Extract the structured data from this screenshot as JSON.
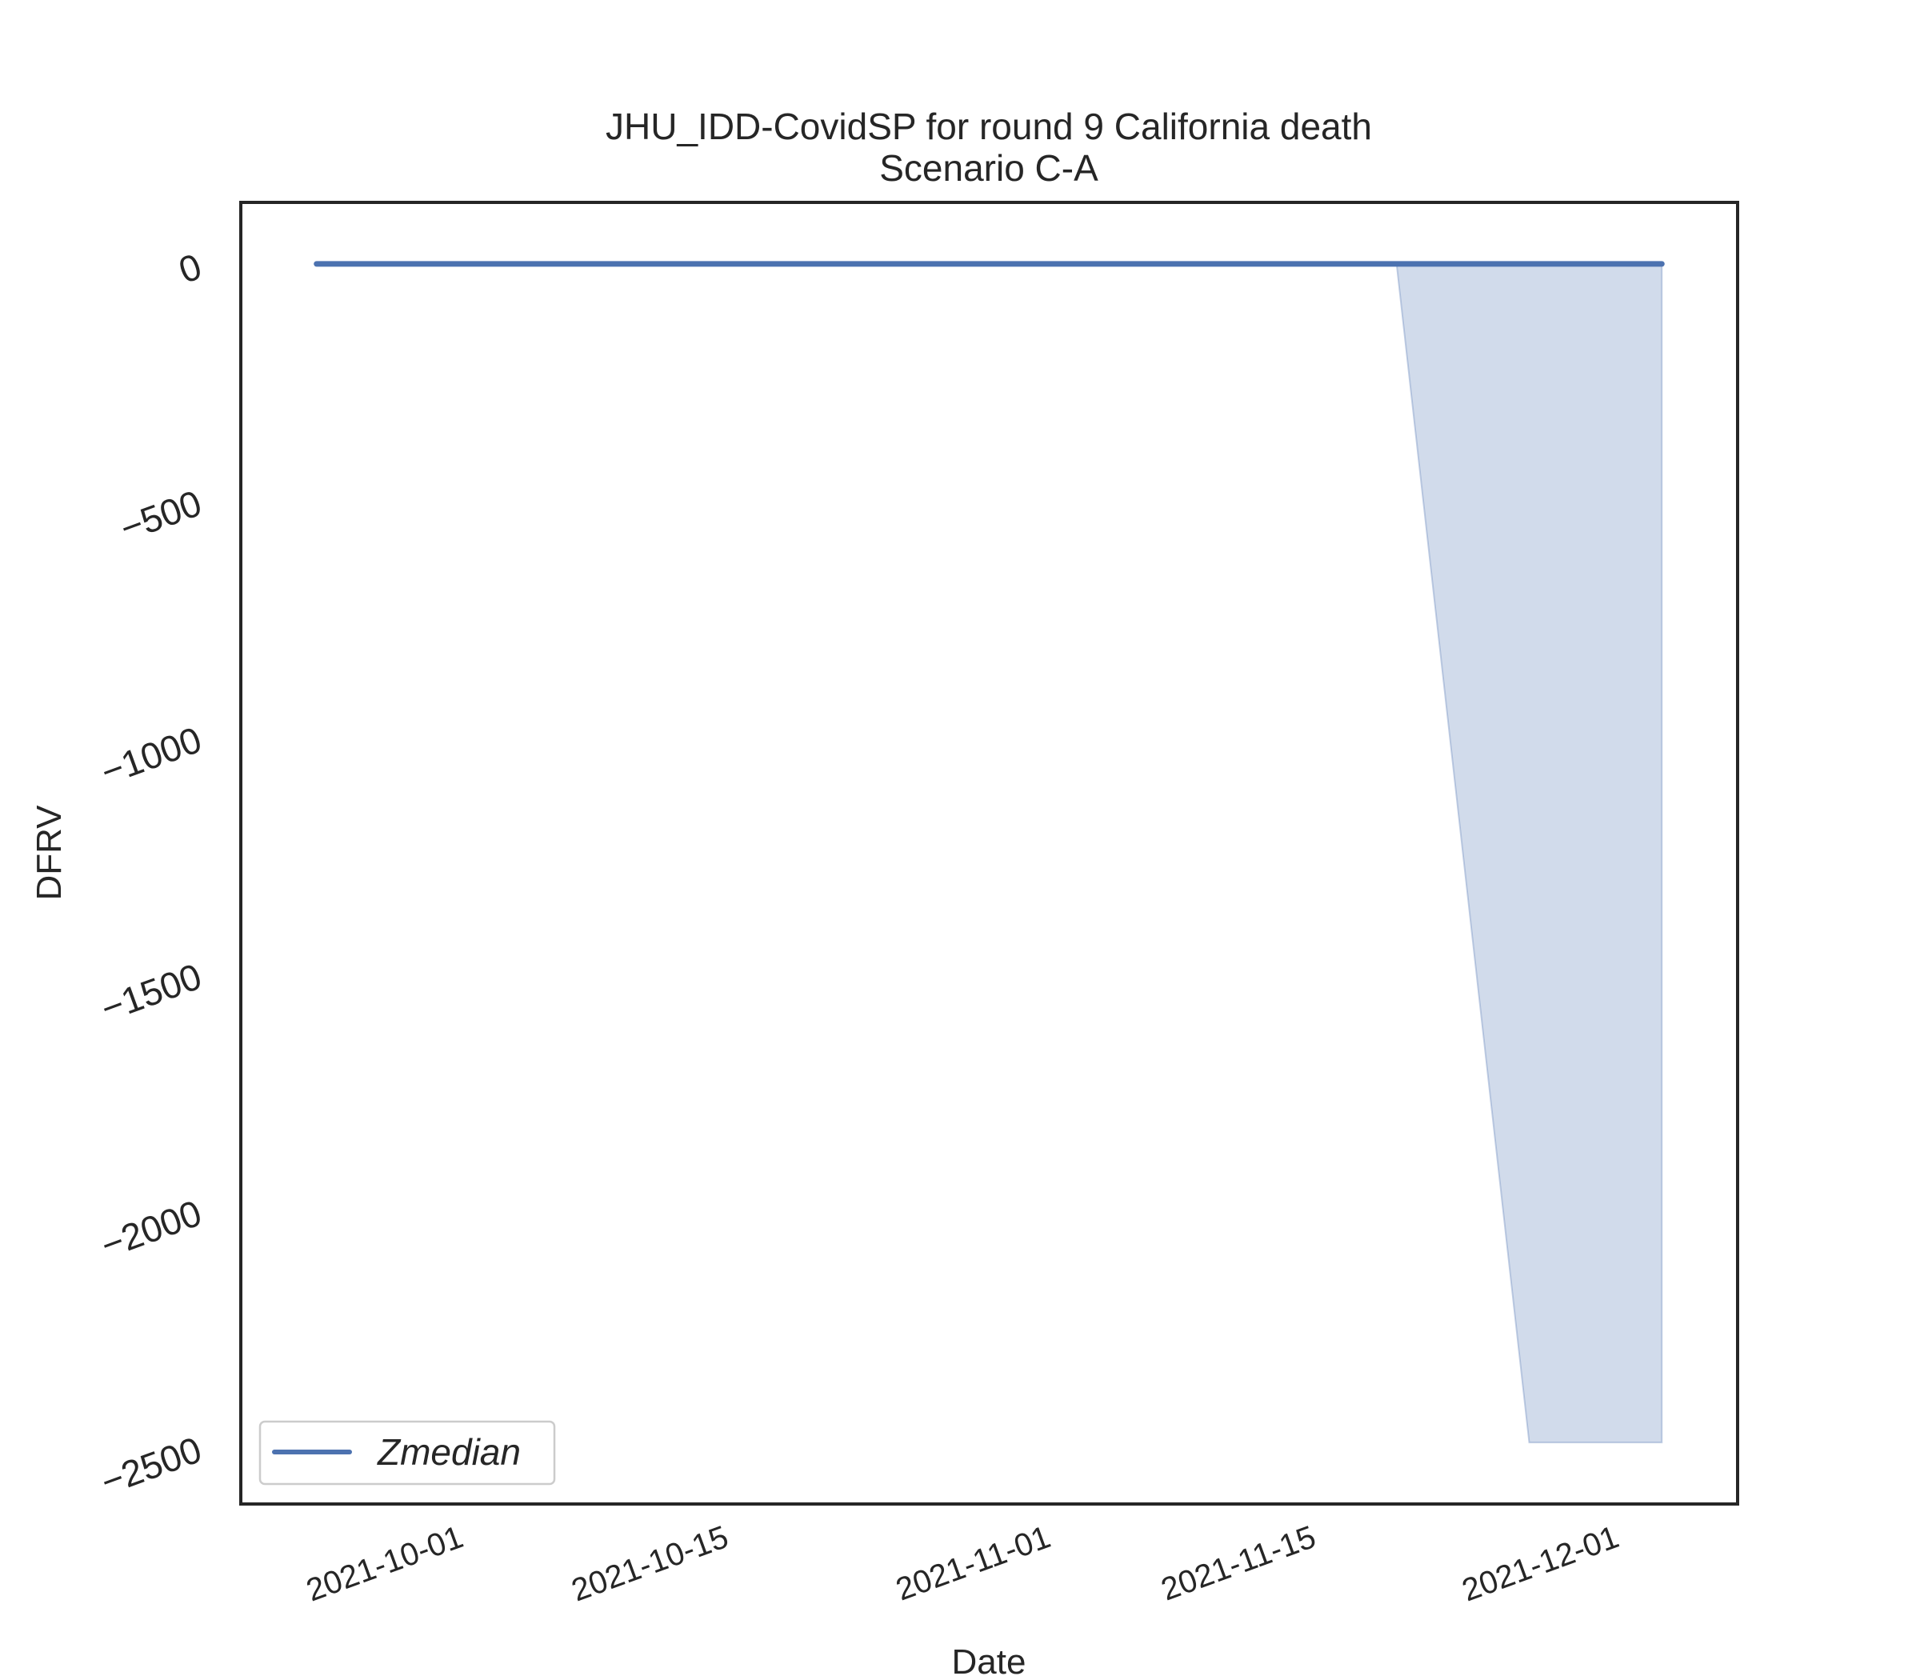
{
  "chart_data": {
    "type": "area",
    "title": "JHU_IDD-CovidSP for round 9 California death",
    "subtitle": "Scenario C-A",
    "xlabel": "Date",
    "ylabel": "DFRV",
    "x_ticks": [
      "2021-10-01",
      "2021-10-15",
      "2021-11-01",
      "2021-11-15",
      "2021-12-01"
    ],
    "y_ticks": [
      0,
      -500,
      -1000,
      -1500,
      -2000,
      -2500
    ],
    "xlim": [
      "2021-09-20",
      "2021-12-08"
    ],
    "ylim": [
      -2620,
      130
    ],
    "grid": false,
    "legend": {
      "placement": "lower-left",
      "entries": [
        "Zmedian"
      ]
    },
    "series": [
      {
        "name": "Zmedian",
        "color": "#4c72b0",
        "points": [
          {
            "x": "2021-09-24",
            "y": 0
          },
          {
            "x": "2021-11-20",
            "y": 0
          },
          {
            "x": "2021-11-27",
            "y": 0
          },
          {
            "x": "2021-12-04",
            "y": 0
          }
        ]
      }
    ],
    "band": {
      "color": "#4c72b0",
      "points": [
        {
          "x": "2021-11-20",
          "upper": 0,
          "lower": 0
        },
        {
          "x": "2021-11-27",
          "upper": 0,
          "lower": -2490
        },
        {
          "x": "2021-12-04",
          "upper": 0,
          "lower": -2490
        }
      ]
    }
  }
}
